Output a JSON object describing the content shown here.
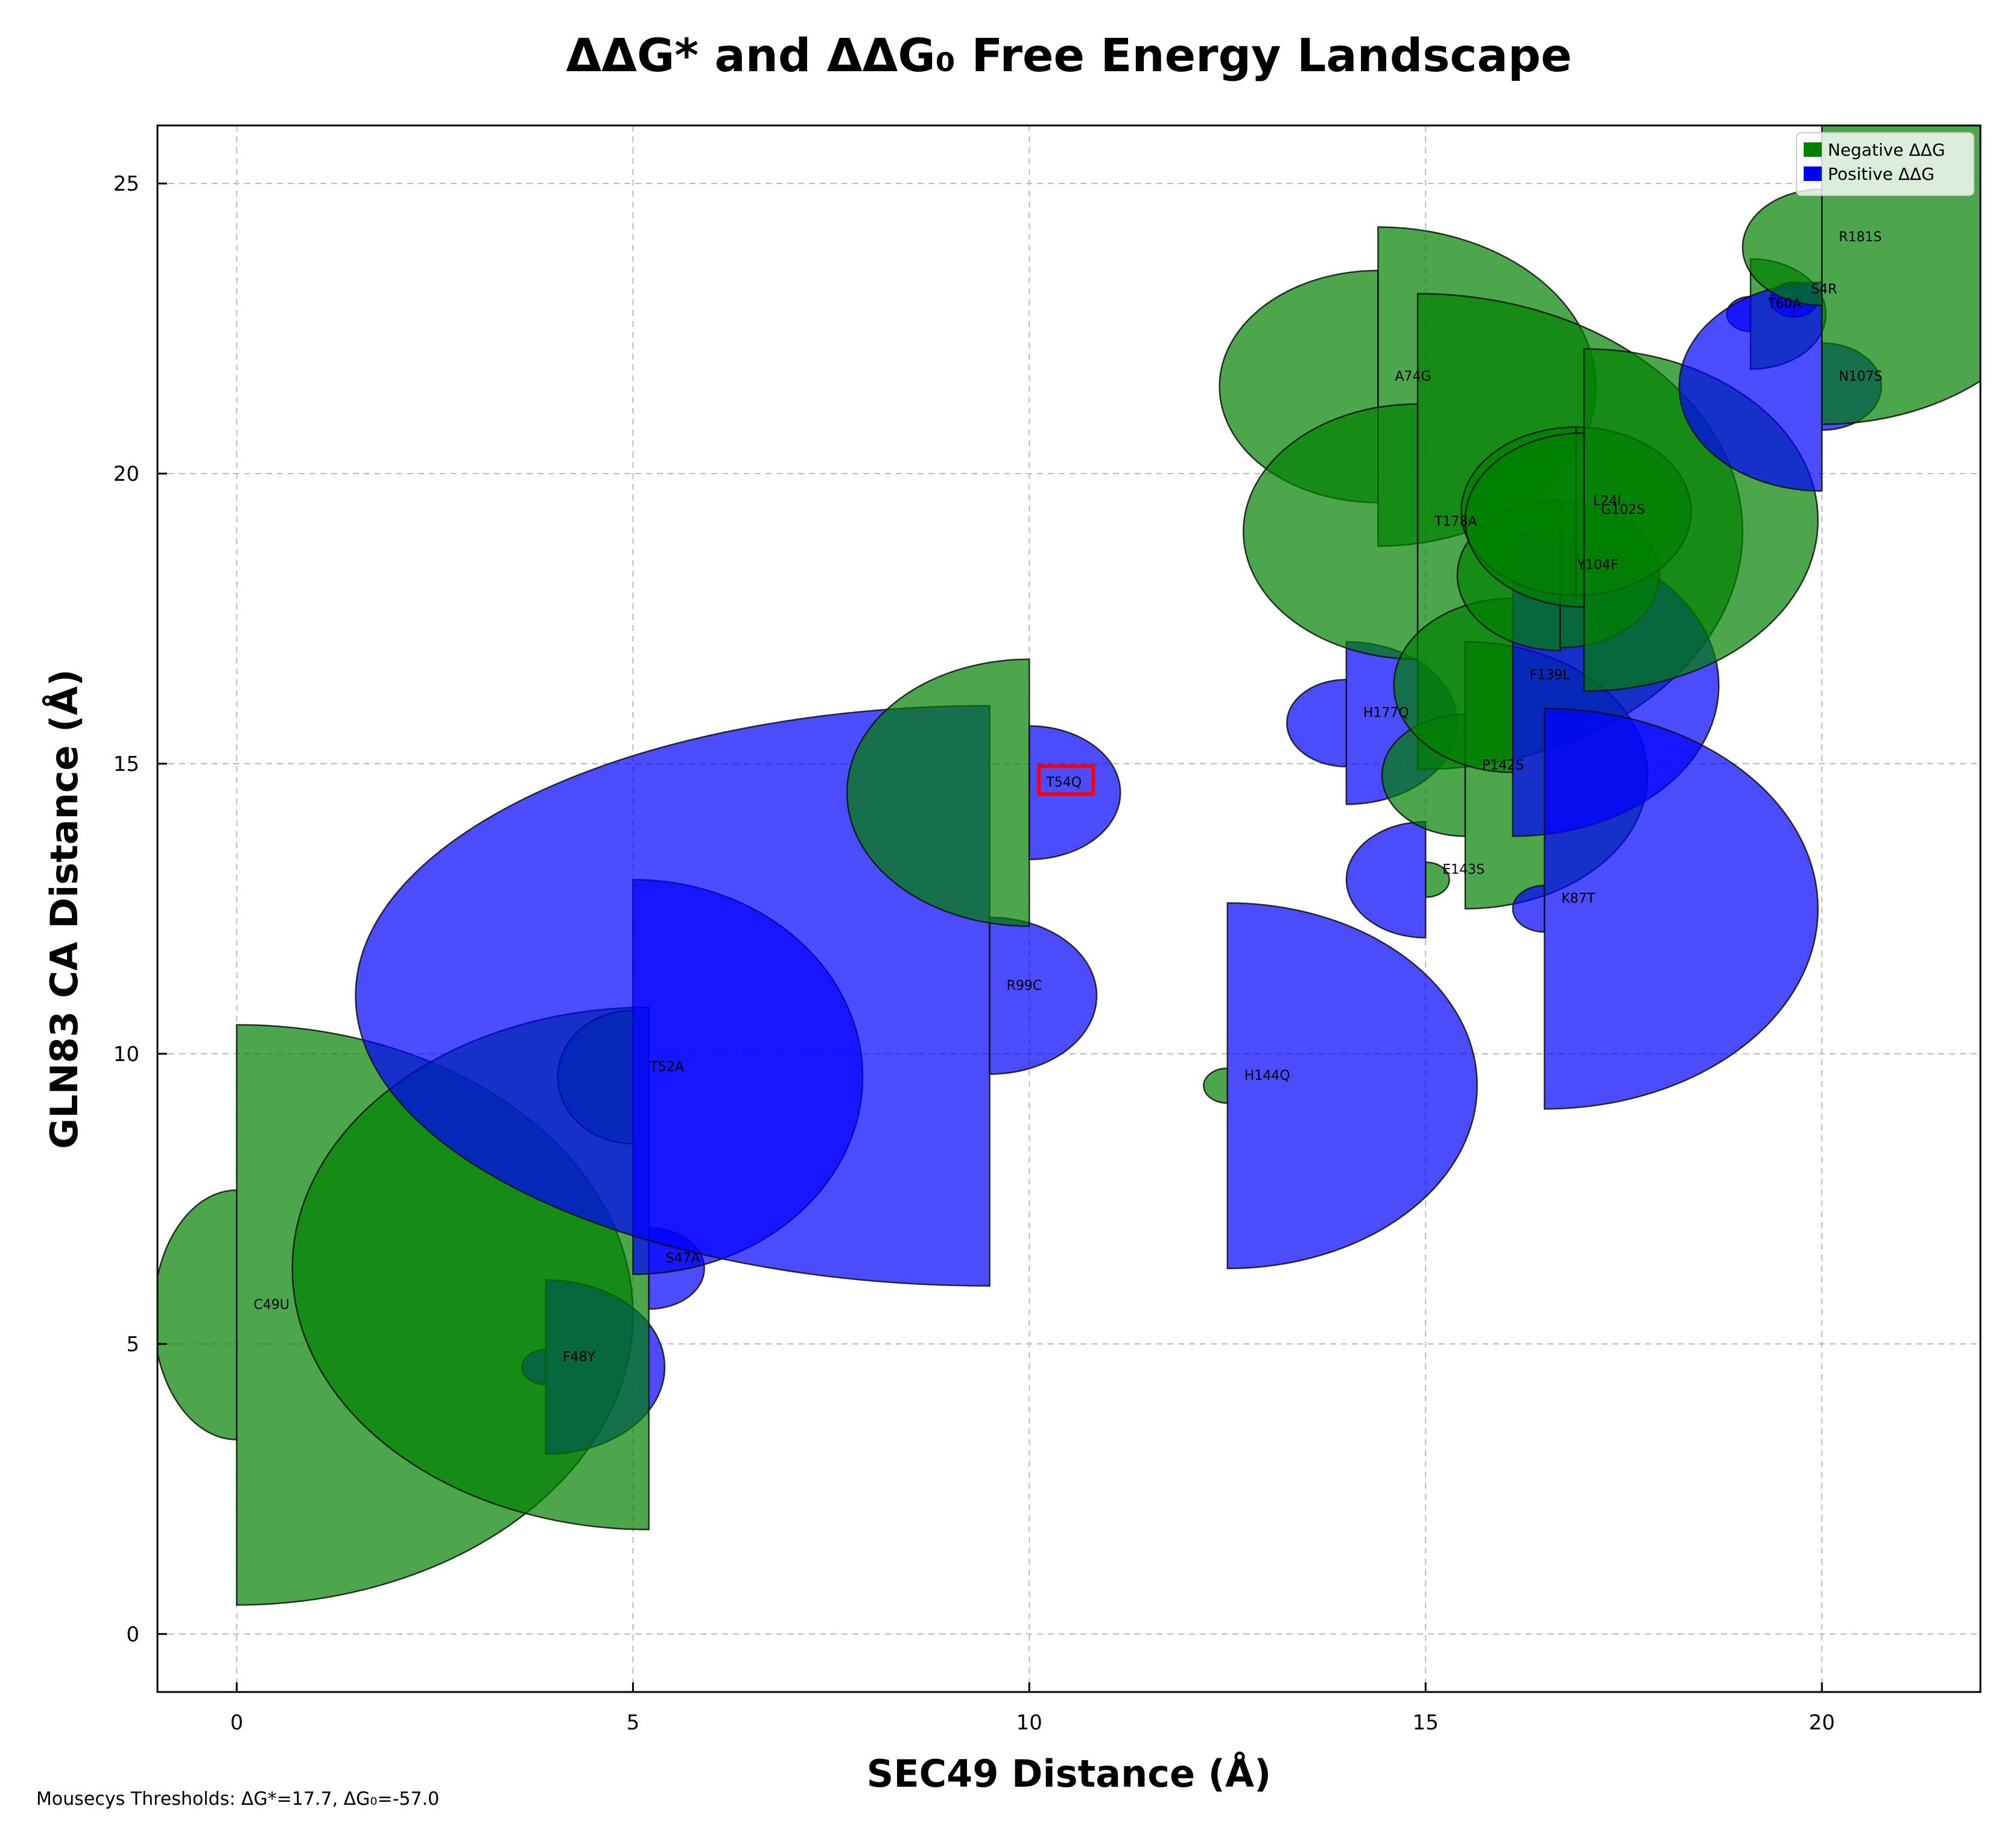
{
  "chart_data": {
    "type": "scatter",
    "title": "ΔΔG* and ΔΔG₀ Free Energy Landscape",
    "xlabel": "SEC49 Distance (Å)",
    "ylabel": "GLN83 CA Distance (Å)",
    "xlim": [
      -1,
      22
    ],
    "ylim": [
      -1,
      26
    ],
    "xticks": [
      0,
      5,
      10,
      15,
      20
    ],
    "yticks": [
      0,
      5,
      10,
      15,
      20,
      25
    ],
    "grid": true,
    "legend_position": "top-right",
    "legend": [
      {
        "label": "Negative ΔΔG",
        "color": "#008000"
      },
      {
        "label": "Positive ΔΔG",
        "color": "#0000ff"
      }
    ],
    "footer": "Mousecys Thresholds: ΔG*=17.7, ΔG₀=-57.0",
    "highlight": "T54Q",
    "points": [
      {
        "label": "C49U",
        "x": 0,
        "y": 5.5,
        "left": {
          "rx": 1.05,
          "ry": 2.15,
          "color": "#008000"
        },
        "right": {
          "rx": 5.0,
          "ry": 5.0,
          "color": "#008000"
        }
      },
      {
        "label": "F48Y",
        "x": 3.9,
        "y": 4.6,
        "left": {
          "rx": 0.3,
          "ry": 0.3,
          "color": "#0000ff"
        },
        "right": {
          "rx": 1.5,
          "ry": 1.5,
          "color": "#0000ff"
        }
      },
      {
        "label": "S47A",
        "x": 5.2,
        "y": 6.3,
        "left": {
          "rx": 4.5,
          "ry": 4.5,
          "color": "#008000"
        },
        "right": {
          "rx": 0.7,
          "ry": 0.7,
          "color": "#0000ff"
        }
      },
      {
        "label": "T52A",
        "x": 5.0,
        "y": 9.6,
        "left": {
          "rx": 0.95,
          "ry": 1.15,
          "color": "#008000"
        },
        "right": {
          "rx": 2.9,
          "ry": 3.4,
          "color": "#0000ff"
        }
      },
      {
        "label": "R99C",
        "x": 9.5,
        "y": 11.0,
        "left": {
          "rx": 8.0,
          "ry": 5.0,
          "color": "#0000ff"
        },
        "right": {
          "rx": 1.35,
          "ry": 1.35,
          "color": "#0000ff"
        }
      },
      {
        "label": "T54Q",
        "x": 10.0,
        "y": 14.5,
        "left": {
          "rx": 2.3,
          "ry": 2.3,
          "color": "#008000"
        },
        "right": {
          "rx": 1.15,
          "ry": 1.15,
          "color": "#0000ff"
        }
      },
      {
        "label": "H144Q",
        "x": 12.5,
        "y": 9.45,
        "left": {
          "rx": 0.3,
          "ry": 0.3,
          "color": "#008000"
        },
        "right": {
          "rx": 3.15,
          "ry": 3.15,
          "color": "#0000ff"
        }
      },
      {
        "label": "H177Q",
        "x": 14.0,
        "y": 15.7,
        "left": {
          "rx": 0.75,
          "ry": 0.75,
          "color": "#0000ff"
        },
        "right": {
          "rx": 1.4,
          "ry": 1.4,
          "color": "#0000ff"
        }
      },
      {
        "label": "E143S",
        "x": 15.0,
        "y": 13.0,
        "left": {
          "rx": 1.0,
          "ry": 1.0,
          "color": "#0000ff"
        },
        "right": {
          "rx": 0.3,
          "ry": 0.3,
          "color": "#008000"
        }
      },
      {
        "label": "A74G",
        "x": 14.4,
        "y": 21.5,
        "left": {
          "rx": 2.0,
          "ry": 2.0,
          "color": "#008000"
        },
        "right": {
          "rx": 2.75,
          "ry": 2.75,
          "color": "#008000"
        }
      },
      {
        "label": "T178A",
        "x": 14.9,
        "y": 19.0,
        "left": {
          "rx": 2.2,
          "ry": 2.2,
          "color": "#008000"
        },
        "right": {
          "rx": 4.1,
          "ry": 4.1,
          "color": "#008000"
        }
      },
      {
        "label": "P142S",
        "x": 15.5,
        "y": 14.8,
        "left": {
          "rx": 1.05,
          "ry": 1.05,
          "color": "#008000"
        },
        "right": {
          "rx": 2.3,
          "ry": 2.3,
          "color": "#008000"
        }
      },
      {
        "label": "F139L",
        "x": 16.1,
        "y": 16.35,
        "left": {
          "rx": 1.5,
          "ry": 1.5,
          "color": "#008000"
        },
        "right": {
          "rx": 2.6,
          "ry": 2.6,
          "color": "#0000ff"
        }
      },
      {
        "label": "K87T",
        "x": 16.5,
        "y": 12.5,
        "left": {
          "rx": 0.4,
          "ry": 0.4,
          "color": "#0000ff"
        },
        "right": {
          "rx": 3.45,
          "ry": 3.45,
          "color": "#0000ff"
        }
      },
      {
        "label": "Y104F",
        "x": 16.7,
        "y": 18.25,
        "left": {
          "rx": 1.3,
          "ry": 1.3,
          "color": "#008000"
        },
        "right": {
          "rx": 1.25,
          "ry": 1.25,
          "color": "#008000"
        }
      },
      {
        "label": "L24I",
        "x": 16.9,
        "y": 19.35,
        "left": {
          "rx": 1.45,
          "ry": 1.45,
          "color": "#008000"
        },
        "right": {
          "rx": 1.45,
          "ry": 1.45,
          "color": "#008000"
        }
      },
      {
        "label": "G102S",
        "x": 17.0,
        "y": 19.2,
        "left": {
          "rx": 1.5,
          "ry": 1.5,
          "color": "#008000"
        },
        "right": {
          "rx": 2.95,
          "ry": 2.95,
          "color": "#008000"
        }
      },
      {
        "label": "T60A",
        "x": 19.1,
        "y": 22.75,
        "left": {
          "rx": 0.3,
          "ry": 0.3,
          "color": "#0000ff"
        },
        "right": {
          "rx": 0.95,
          "ry": 0.95,
          "color": "#008000"
        }
      },
      {
        "label": "S4R",
        "x": 19.65,
        "y": 23.0,
        "left": {
          "rx": 0.3,
          "ry": 0.3,
          "color": "#0000ff"
        },
        "right": {
          "rx": 0.3,
          "ry": 0.3,
          "color": "#0000ff"
        }
      },
      {
        "label": "N107S",
        "x": 20.0,
        "y": 21.5,
        "left": {
          "rx": 1.8,
          "ry": 1.8,
          "color": "#0000ff"
        },
        "right": {
          "rx": 0.75,
          "ry": 0.75,
          "color": "#0000ff"
        }
      },
      {
        "label": "R181S",
        "x": 20.0,
        "y": 23.9,
        "left": {
          "rx": 1.0,
          "ry": 1.0,
          "color": "#008000"
        },
        "right": {
          "rx": 3.05,
          "ry": 3.05,
          "color": "#008000"
        }
      }
    ]
  }
}
